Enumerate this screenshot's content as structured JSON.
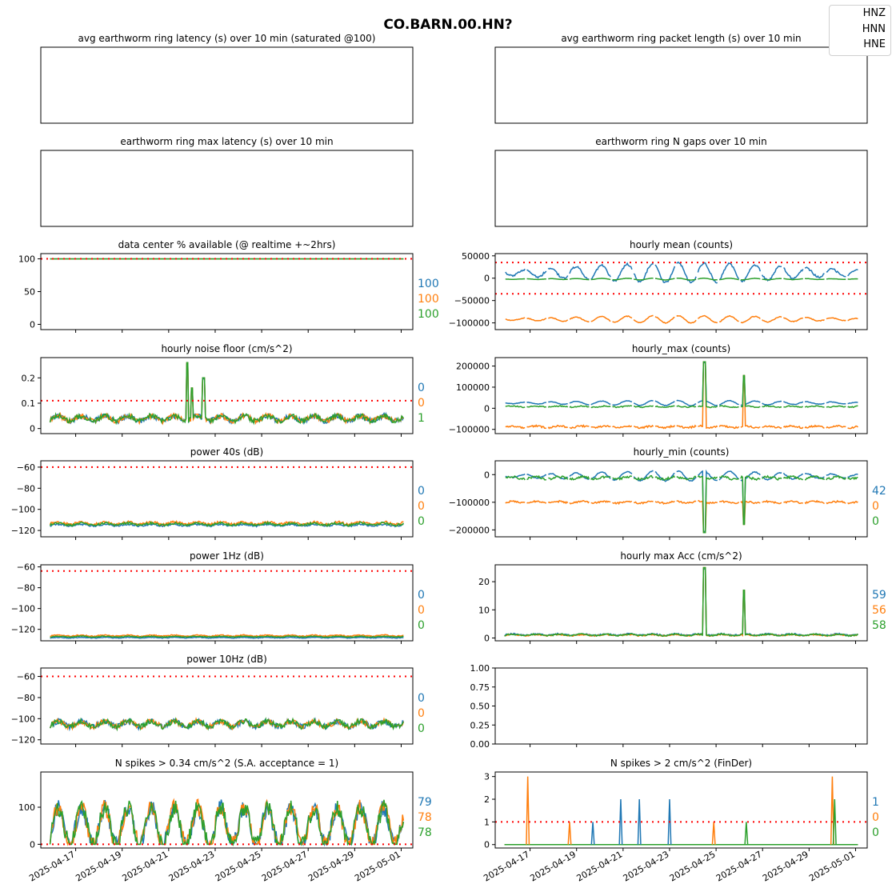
{
  "figure_title": "CO.BARN.00.HN?",
  "legend": [
    "HNZ",
    "HNN",
    "HNE"
  ],
  "colors": {
    "HNZ": "#1f77b4",
    "HNN": "#ff7f0e",
    "HNE": "#2ca02c",
    "threshold": "#ff0000"
  },
  "chart_data": [
    {
      "id": "avg-latency",
      "type": "line",
      "title": "avg earthworm ring latency (s)   over 10 min (saturated @100)",
      "empty": true,
      "series": []
    },
    {
      "id": "avg-packet-length",
      "type": "line",
      "title": "avg earthworm ring packet length (s)   over 10 min",
      "empty": true,
      "series": []
    },
    {
      "id": "max-latency",
      "type": "line",
      "title": "earthworm ring max latency (s)   over 10 min",
      "empty": true,
      "series": []
    },
    {
      "id": "n-gaps",
      "type": "line",
      "title": "earthworm ring N gaps   over 10 min",
      "empty": true,
      "series": []
    },
    {
      "id": "availability",
      "type": "line",
      "title": "data center % available (@ realtime +~2hrs)",
      "ylim": [
        -8,
        108
      ],
      "yticks": [
        0,
        50,
        100
      ],
      "threshold": 100,
      "latest": [
        "100",
        "100",
        "100"
      ],
      "series": [
        {
          "name": "HNZ",
          "level": 100
        },
        {
          "name": "HNN",
          "level": 100
        },
        {
          "name": "HNE",
          "level": 100
        }
      ]
    },
    {
      "id": "hourly-mean",
      "type": "line",
      "title": "hourly mean (counts)",
      "ylim": [
        -115000,
        55000
      ],
      "yticks": [
        -100000,
        -50000,
        0,
        50000
      ],
      "thresholds": [
        35000,
        -35000
      ],
      "series": [
        {
          "name": "HNZ",
          "level": 12000,
          "wiggle": 22000
        },
        {
          "name": "HNN",
          "level": -92000,
          "wiggle": 8000
        },
        {
          "name": "HNE",
          "level": -2000,
          "wiggle": 2000
        }
      ]
    },
    {
      "id": "noise-floor",
      "type": "line",
      "title": "hourly noise floor (cm/s^2)",
      "ylim": [
        -0.02,
        0.28
      ],
      "yticks": [
        0.0,
        0.1,
        0.2
      ],
      "threshold": 0.11,
      "latest": [
        "0",
        "0",
        "1"
      ],
      "spikes": [
        {
          "date": "2025-04-21.8",
          "value": 0.26
        },
        {
          "date": "2025-04-22.0",
          "value": 0.16
        },
        {
          "date": "2025-04-22.5",
          "value": 0.2
        }
      ],
      "series": [
        {
          "name": "HNZ",
          "level": 0.04,
          "wiggle": 0.02
        },
        {
          "name": "HNN",
          "level": 0.04,
          "wiggle": 0.02
        },
        {
          "name": "HNE",
          "level": 0.04,
          "wiggle": 0.02
        }
      ]
    },
    {
      "id": "hourly-max",
      "type": "line",
      "title": "hourly_max (counts)",
      "ylim": [
        -120000,
        240000
      ],
      "yticks": [
        -100000,
        0,
        100000,
        200000
      ],
      "spikes": [
        {
          "date": "2025-04-24.5",
          "value": 220000
        },
        {
          "date": "2025-04-26.2",
          "value": 155000
        }
      ],
      "series": [
        {
          "name": "HNZ",
          "level": 25000,
          "wiggle": 12000
        },
        {
          "name": "HNN",
          "level": -88000,
          "wiggle": 8000
        },
        {
          "name": "HNE",
          "level": 8000,
          "wiggle": 5000
        }
      ]
    },
    {
      "id": "power-40s",
      "type": "line",
      "title": "power 40s (dB)",
      "ylim": [
        -126,
        -54
      ],
      "yticks": [
        -120,
        -100,
        -80,
        -60
      ],
      "threshold": -60,
      "latest": [
        "0",
        "0",
        "0"
      ],
      "series": [
        {
          "name": "HNZ",
          "level": -115,
          "wiggle": 1.5
        },
        {
          "name": "HNN",
          "level": -113,
          "wiggle": 2
        },
        {
          "name": "HNE",
          "level": -114,
          "wiggle": 2
        }
      ]
    },
    {
      "id": "hourly-min",
      "type": "line",
      "title": "hourly_min (counts)",
      "ylim": [
        -225000,
        50000
      ],
      "yticks": [
        -200000,
        -100000,
        0
      ],
      "latest": [
        "42",
        "0",
        "0"
      ],
      "spikes": [
        {
          "date": "2025-04-24.5",
          "value": -210000
        },
        {
          "date": "2025-04-26.2",
          "value": -180000
        }
      ],
      "series": [
        {
          "name": "HNZ",
          "level": -5000,
          "wiggle": 18000
        },
        {
          "name": "HNN",
          "level": -100000,
          "wiggle": 6000
        },
        {
          "name": "HNE",
          "level": -12000,
          "wiggle": 8000
        }
      ]
    },
    {
      "id": "power-1hz",
      "type": "line",
      "title": "power 1Hz (dB)",
      "ylim": [
        -131,
        -58
      ],
      "yticks": [
        -120,
        -100,
        -80,
        -60
      ],
      "threshold": -64,
      "latest": [
        "0",
        "0",
        "0"
      ],
      "series": [
        {
          "name": "HNZ",
          "level": -128,
          "wiggle": 0.6
        },
        {
          "name": "HNN",
          "level": -126,
          "wiggle": 1
        },
        {
          "name": "HNE",
          "level": -127,
          "wiggle": 0.7
        }
      ]
    },
    {
      "id": "hourly-max-acc",
      "type": "line",
      "title": "hourly max Acc (cm/s^2)",
      "ylim": [
        -1,
        26
      ],
      "yticks": [
        0,
        10,
        20
      ],
      "latest": [
        "59",
        "56",
        "58"
      ],
      "spikes": [
        {
          "date": "2025-04-24.5",
          "value": 25
        },
        {
          "date": "2025-04-26.2",
          "value": 17
        }
      ],
      "series": [
        {
          "name": "HNZ",
          "level": 1.2,
          "wiggle": 0.5
        },
        {
          "name": "HNN",
          "level": 1.0,
          "wiggle": 0.4
        },
        {
          "name": "HNE",
          "level": 1.1,
          "wiggle": 0.5
        }
      ]
    },
    {
      "id": "power-10hz",
      "type": "line",
      "title": "power 10Hz (dB)",
      "ylim": [
        -124,
        -52
      ],
      "yticks": [
        -120,
        -100,
        -80,
        -60
      ],
      "threshold": -60,
      "latest": [
        "0",
        "0",
        "0"
      ],
      "series": [
        {
          "name": "HNZ",
          "level": -105,
          "wiggle": 5
        },
        {
          "name": "HNN",
          "level": -105,
          "wiggle": 5
        },
        {
          "name": "HNE",
          "level": -105,
          "wiggle": 5
        }
      ]
    },
    {
      "id": "empty-panel",
      "type": "line",
      "title": "",
      "ylim": [
        0,
        1
      ],
      "yticks": [
        0.0,
        0.25,
        0.5,
        0.75,
        1.0
      ],
      "empty": true,
      "series": []
    },
    {
      "id": "spikes-sa",
      "type": "line",
      "title": "N spikes > 0.34 cm/s^2 (S.A. acceptance = 1)",
      "ylim": [
        -10,
        195
      ],
      "yticks": [
        0,
        100
      ],
      "threshold": 0,
      "latest": [
        "79",
        "78",
        "78"
      ],
      "series": [
        {
          "name": "HNZ",
          "level": 40,
          "wiggle": 50
        },
        {
          "name": "HNN",
          "level": 40,
          "wiggle": 50
        },
        {
          "name": "HNE",
          "level": 40,
          "wiggle": 50
        }
      ]
    },
    {
      "id": "spikes-finder",
      "type": "line",
      "title": "N spikes > 2 cm/s^2 (FinDer)",
      "ylim": [
        -0.15,
        3.2
      ],
      "yticks": [
        0,
        1,
        2,
        3
      ],
      "threshold": 1,
      "latest": [
        "1",
        "0",
        "0"
      ],
      "series": [
        {
          "name": "HNZ",
          "level": 0
        },
        {
          "name": "HNN",
          "level": 0
        },
        {
          "name": "HNE",
          "level": 0
        }
      ]
    }
  ],
  "x_tick_labels": [
    "2025-04-17",
    "2025-04-19",
    "2025-04-21",
    "2025-04-23",
    "2025-04-25",
    "2025-04-27",
    "2025-04-29",
    "2025-05-01"
  ]
}
